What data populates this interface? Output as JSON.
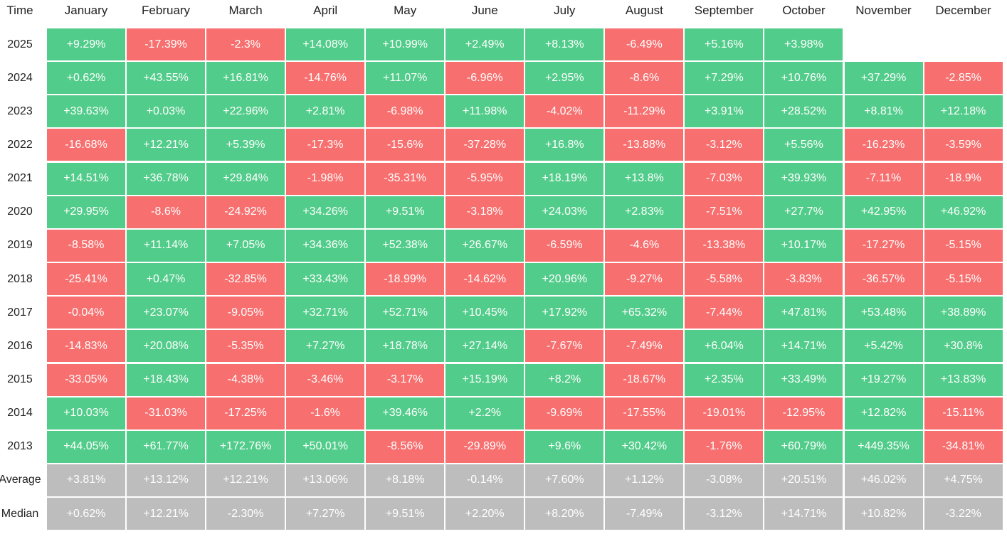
{
  "table": {
    "header": [
      "Time",
      "January",
      "February",
      "March",
      "April",
      "May",
      "June",
      "July",
      "August",
      "September",
      "October",
      "November",
      "December"
    ],
    "rows": [
      {
        "label": "2025",
        "cells": [
          "+9.29%",
          "-17.39%",
          "-2.3%",
          "+14.08%",
          "+10.99%",
          "+2.49%",
          "+8.13%",
          "-6.49%",
          "+5.16%",
          "+3.98%"
        ]
      },
      {
        "label": "2024",
        "cells": [
          "+0.62%",
          "+43.55%",
          "+16.81%",
          "-14.76%",
          "+11.07%",
          "-6.96%",
          "+2.95%",
          "-8.6%",
          "+7.29%",
          "+10.76%",
          "+37.29%",
          "-2.85%"
        ]
      },
      {
        "label": "2023",
        "cells": [
          "+39.63%",
          "+0.03%",
          "+22.96%",
          "+2.81%",
          "-6.98%",
          "+11.98%",
          "-4.02%",
          "-11.29%",
          "+3.91%",
          "+28.52%",
          "+8.81%",
          "+12.18%"
        ]
      },
      {
        "label": "2022",
        "cells": [
          "-16.68%",
          "+12.21%",
          "+5.39%",
          "-17.3%",
          "-15.6%",
          "-37.28%",
          "+16.8%",
          "-13.88%",
          "-3.12%",
          "+5.56%",
          "-16.23%",
          "-3.59%"
        ]
      },
      {
        "label": "2021",
        "cells": [
          "+14.51%",
          "+36.78%",
          "+29.84%",
          "-1.98%",
          "-35.31%",
          "-5.95%",
          "+18.19%",
          "+13.8%",
          "-7.03%",
          "+39.93%",
          "-7.11%",
          "-18.9%"
        ]
      },
      {
        "label": "2020",
        "cells": [
          "+29.95%",
          "-8.6%",
          "-24.92%",
          "+34.26%",
          "+9.51%",
          "-3.18%",
          "+24.03%",
          "+2.83%",
          "-7.51%",
          "+27.7%",
          "+42.95%",
          "+46.92%"
        ]
      },
      {
        "label": "2019",
        "cells": [
          "-8.58%",
          "+11.14%",
          "+7.05%",
          "+34.36%",
          "+52.38%",
          "+26.67%",
          "-6.59%",
          "-4.6%",
          "-13.38%",
          "+10.17%",
          "-17.27%",
          "-5.15%"
        ]
      },
      {
        "label": "2018",
        "cells": [
          "-25.41%",
          "+0.47%",
          "-32.85%",
          "+33.43%",
          "-18.99%",
          "-14.62%",
          "+20.96%",
          "-9.27%",
          "-5.58%",
          "-3.83%",
          "-36.57%",
          "-5.15%"
        ]
      },
      {
        "label": "2017",
        "cells": [
          "-0.04%",
          "+23.07%",
          "-9.05%",
          "+32.71%",
          "+52.71%",
          "+10.45%",
          "+17.92%",
          "+65.32%",
          "-7.44%",
          "+47.81%",
          "+53.48%",
          "+38.89%"
        ]
      },
      {
        "label": "2016",
        "cells": [
          "-14.83%",
          "+20.08%",
          "-5.35%",
          "+7.27%",
          "+18.78%",
          "+27.14%",
          "-7.67%",
          "-7.49%",
          "+6.04%",
          "+14.71%",
          "+5.42%",
          "+30.8%"
        ]
      },
      {
        "label": "2015",
        "cells": [
          "-33.05%",
          "+18.43%",
          "-4.38%",
          "-3.46%",
          "-3.17%",
          "+15.19%",
          "+8.2%",
          "-18.67%",
          "+2.35%",
          "+33.49%",
          "+19.27%",
          "+13.83%"
        ]
      },
      {
        "label": "2014",
        "cells": [
          "+10.03%",
          "-31.03%",
          "-17.25%",
          "-1.6%",
          "+39.46%",
          "+2.2%",
          "-9.69%",
          "-17.55%",
          "-19.01%",
          "-12.95%",
          "+12.82%",
          "-15.11%"
        ]
      },
      {
        "label": "2013",
        "cells": [
          "+44.05%",
          "+61.77%",
          "+172.76%",
          "+50.01%",
          "-8.56%",
          "-29.89%",
          "+9.6%",
          "+30.42%",
          "-1.76%",
          "+60.79%",
          "+449.35%",
          "-34.81%"
        ]
      }
    ],
    "summary_rows": [
      {
        "label": "Average",
        "cells": [
          "+3.81%",
          "+13.12%",
          "+12.21%",
          "+13.06%",
          "+8.18%",
          "-0.14%",
          "+7.60%",
          "+1.12%",
          "-3.08%",
          "+20.51%",
          "+46.02%",
          "+4.75%"
        ]
      },
      {
        "label": "Median",
        "cells": [
          "+0.62%",
          "+12.21%",
          "-2.30%",
          "+7.27%",
          "+9.51%",
          "+2.20%",
          "+8.20%",
          "-7.49%",
          "-3.12%",
          "+14.71%",
          "+10.82%",
          "-3.22%"
        ]
      }
    ]
  }
}
